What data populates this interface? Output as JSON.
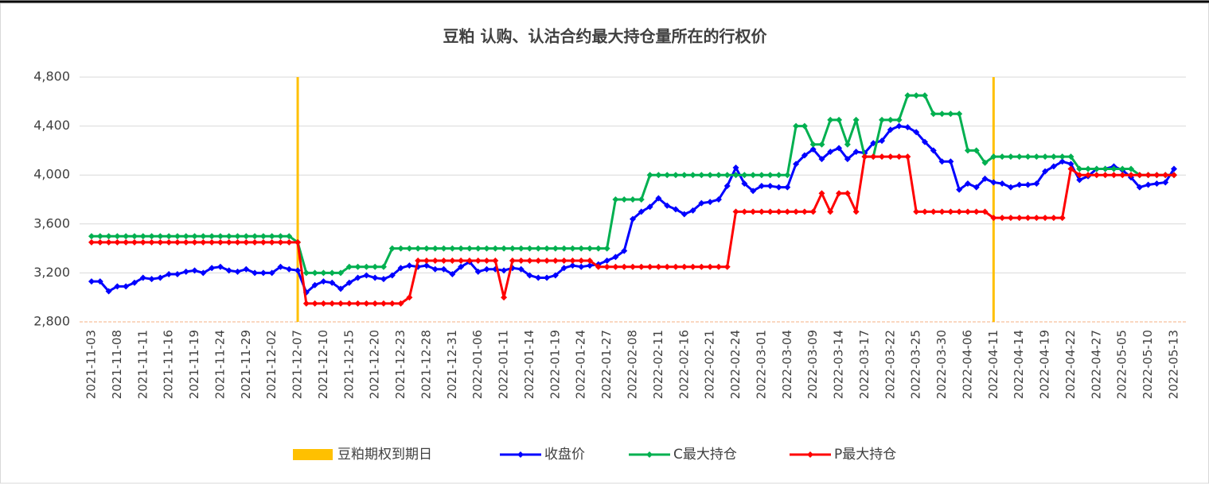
{
  "chart_data": {
    "type": "line",
    "title": "豆粕  认购、认沽合约最大持仓量所在的行权价",
    "categories": [
      "2021-11-03",
      null,
      null,
      "2021-11-08",
      null,
      null,
      "2021-11-11",
      null,
      null,
      "2021-11-16",
      null,
      null,
      "2021-11-19",
      null,
      null,
      "2021-11-24",
      null,
      null,
      "2021-11-29",
      null,
      null,
      "2021-12-02",
      null,
      null,
      "2021-12-07",
      null,
      null,
      "2021-12-10",
      null,
      null,
      "2021-12-15",
      null,
      null,
      "2021-12-20",
      null,
      null,
      "2021-12-23",
      null,
      null,
      "2021-12-28",
      null,
      null,
      "2021-12-31",
      null,
      null,
      "2022-01-06",
      null,
      null,
      "2022-01-11",
      null,
      null,
      "2022-01-14",
      null,
      null,
      "2022-01-19",
      null,
      null,
      "2022-01-24",
      null,
      null,
      "2022-01-27",
      null,
      null,
      "2022-02-08",
      null,
      null,
      "2022-02-11",
      null,
      null,
      "2022-02-16",
      null,
      null,
      "2022-02-21",
      null,
      null,
      "2022-02-24",
      null,
      null,
      "2022-03-01",
      null,
      null,
      "2022-03-04",
      null,
      null,
      "2022-03-09",
      null,
      null,
      "2022-03-14",
      null,
      null,
      "2022-03-17",
      null,
      null,
      "2022-03-22",
      null,
      null,
      "2022-03-25",
      null,
      null,
      "2022-03-30",
      null,
      null,
      "2022-04-06",
      null,
      null,
      "2022-04-11",
      null,
      null,
      "2022-04-14",
      null,
      null,
      "2022-04-19",
      null,
      null,
      "2022-04-22",
      null,
      null,
      "2022-04-27",
      null,
      null,
      "2022-05-05",
      null,
      null,
      "2022-05-10",
      null,
      null,
      "2022-05-13"
    ],
    "series": [
      {
        "name": "豆粕期权到期日",
        "type": "bar",
        "color": "#ffc000",
        "values": [
          null,
          null,
          null,
          null,
          null,
          null,
          null,
          null,
          null,
          null,
          null,
          null,
          null,
          null,
          null,
          null,
          null,
          null,
          null,
          null,
          null,
          null,
          null,
          null,
          4800,
          null,
          null,
          null,
          null,
          null,
          null,
          null,
          null,
          null,
          null,
          null,
          null,
          null,
          null,
          null,
          null,
          null,
          null,
          null,
          null,
          null,
          null,
          null,
          null,
          null,
          null,
          null,
          null,
          null,
          null,
          null,
          null,
          null,
          null,
          null,
          null,
          null,
          null,
          null,
          null,
          null,
          null,
          null,
          null,
          null,
          null,
          null,
          null,
          null,
          null,
          null,
          null,
          null,
          null,
          null,
          null,
          null,
          null,
          null,
          null,
          null,
          null,
          null,
          null,
          null,
          null,
          null,
          null,
          null,
          null,
          null,
          null,
          null,
          null,
          null,
          null,
          null,
          null,
          null,
          null,
          4800,
          null,
          null,
          null,
          null,
          null,
          null,
          null,
          null,
          null,
          null,
          null,
          null,
          null,
          null,
          null,
          null,
          null,
          null,
          null,
          null,
          null
        ]
      },
      {
        "name": "收盘价",
        "type": "line",
        "color": "#0000ff",
        "values": [
          3130,
          3130,
          3050,
          3090,
          3090,
          3120,
          3160,
          3150,
          3160,
          3190,
          3190,
          3210,
          3220,
          3200,
          3240,
          3250,
          3220,
          3210,
          3230,
          3200,
          3200,
          3200,
          3250,
          3230,
          3220,
          3040,
          3100,
          3130,
          3120,
          3070,
          3120,
          3160,
          3180,
          3160,
          3150,
          3180,
          3240,
          3260,
          3250,
          3260,
          3230,
          3230,
          3190,
          3250,
          3290,
          3210,
          3230,
          3230,
          3220,
          3240,
          3230,
          3180,
          3160,
          3160,
          3180,
          3240,
          3260,
          3250,
          3260,
          3270,
          3300,
          3330,
          3380,
          3640,
          3700,
          3740,
          3810,
          3750,
          3720,
          3680,
          3710,
          3770,
          3780,
          3800,
          3910,
          4060,
          3930,
          3870,
          3910,
          3910,
          3900,
          3900,
          4090,
          4160,
          4210,
          4130,
          4190,
          4220,
          4130,
          4190,
          4180,
          4260,
          4280,
          4370,
          4400,
          4390,
          4350,
          4270,
          4200,
          4110,
          4110,
          3880,
          3930,
          3900,
          3970,
          3940,
          3930,
          3900,
          3920,
          3920,
          3930,
          4030,
          4070,
          4110,
          4090,
          3960,
          3990,
          4050,
          4050,
          4070,
          4040,
          3980,
          3900,
          3920,
          3930,
          3940,
          4050
        ]
      },
      {
        "name": "C最大持仓",
        "type": "line",
        "color": "#00b050",
        "values": [
          3500,
          3500,
          3500,
          3500,
          3500,
          3500,
          3500,
          3500,
          3500,
          3500,
          3500,
          3500,
          3500,
          3500,
          3500,
          3500,
          3500,
          3500,
          3500,
          3500,
          3500,
          3500,
          3500,
          3500,
          3450,
          3200,
          3200,
          3200,
          3200,
          3200,
          3250,
          3250,
          3250,
          3250,
          3250,
          3400,
          3400,
          3400,
          3400,
          3400,
          3400,
          3400,
          3400,
          3400,
          3400,
          3400,
          3400,
          3400,
          3400,
          3400,
          3400,
          3400,
          3400,
          3400,
          3400,
          3400,
          3400,
          3400,
          3400,
          3400,
          3400,
          3800,
          3800,
          3800,
          3800,
          4000,
          4000,
          4000,
          4000,
          4000,
          4000,
          4000,
          4000,
          4000,
          4000,
          4000,
          4000,
          4000,
          4000,
          4000,
          4000,
          4000,
          4400,
          4400,
          4250,
          4250,
          4450,
          4450,
          4250,
          4450,
          4150,
          4150,
          4450,
          4450,
          4450,
          4650,
          4650,
          4650,
          4500,
          4500,
          4500,
          4500,
          4200,
          4200,
          4100,
          4150,
          4150,
          4150,
          4150,
          4150,
          4150,
          4150,
          4150,
          4150,
          4150,
          4050,
          4050,
          4050,
          4050,
          4050,
          4050,
          4050,
          4000,
          4000,
          4000,
          4000,
          4000
        ]
      },
      {
        "name": "P最大持仓",
        "type": "line",
        "color": "#ff0000",
        "values": [
          3450,
          3450,
          3450,
          3450,
          3450,
          3450,
          3450,
          3450,
          3450,
          3450,
          3450,
          3450,
          3450,
          3450,
          3450,
          3450,
          3450,
          3450,
          3450,
          3450,
          3450,
          3450,
          3450,
          3450,
          3450,
          2950,
          2950,
          2950,
          2950,
          2950,
          2950,
          2950,
          2950,
          2950,
          2950,
          2950,
          2950,
          3000,
          3300,
          3300,
          3300,
          3300,
          3300,
          3300,
          3300,
          3300,
          3300,
          3300,
          3000,
          3300,
          3300,
          3300,
          3300,
          3300,
          3300,
          3300,
          3300,
          3300,
          3300,
          3250,
          3250,
          3250,
          3250,
          3250,
          3250,
          3250,
          3250,
          3250,
          3250,
          3250,
          3250,
          3250,
          3250,
          3250,
          3250,
          3700,
          3700,
          3700,
          3700,
          3700,
          3700,
          3700,
          3700,
          3700,
          3700,
          3850,
          3700,
          3850,
          3850,
          3700,
          4150,
          4150,
          4150,
          4150,
          4150,
          4150,
          3700,
          3700,
          3700,
          3700,
          3700,
          3700,
          3700,
          3700,
          3700,
          3650,
          3650,
          3650,
          3650,
          3650,
          3650,
          3650,
          3650,
          3650,
          4050,
          4000,
          4000,
          4000,
          4000,
          4000,
          4000,
          4000,
          4000,
          4000,
          4000,
          4000,
          4000
        ]
      }
    ],
    "ylim": [
      2800,
      4800
    ],
    "yticks": [
      {
        "value": 2800,
        "label": "2,800"
      },
      {
        "value": 3200,
        "label": "3,200"
      },
      {
        "value": 3600,
        "label": "3,600"
      },
      {
        "value": 4000,
        "label": "4,000"
      },
      {
        "value": 4400,
        "label": "4,400"
      },
      {
        "value": 4800,
        "label": "4,800"
      }
    ],
    "grid": true,
    "legend": "bottom"
  }
}
